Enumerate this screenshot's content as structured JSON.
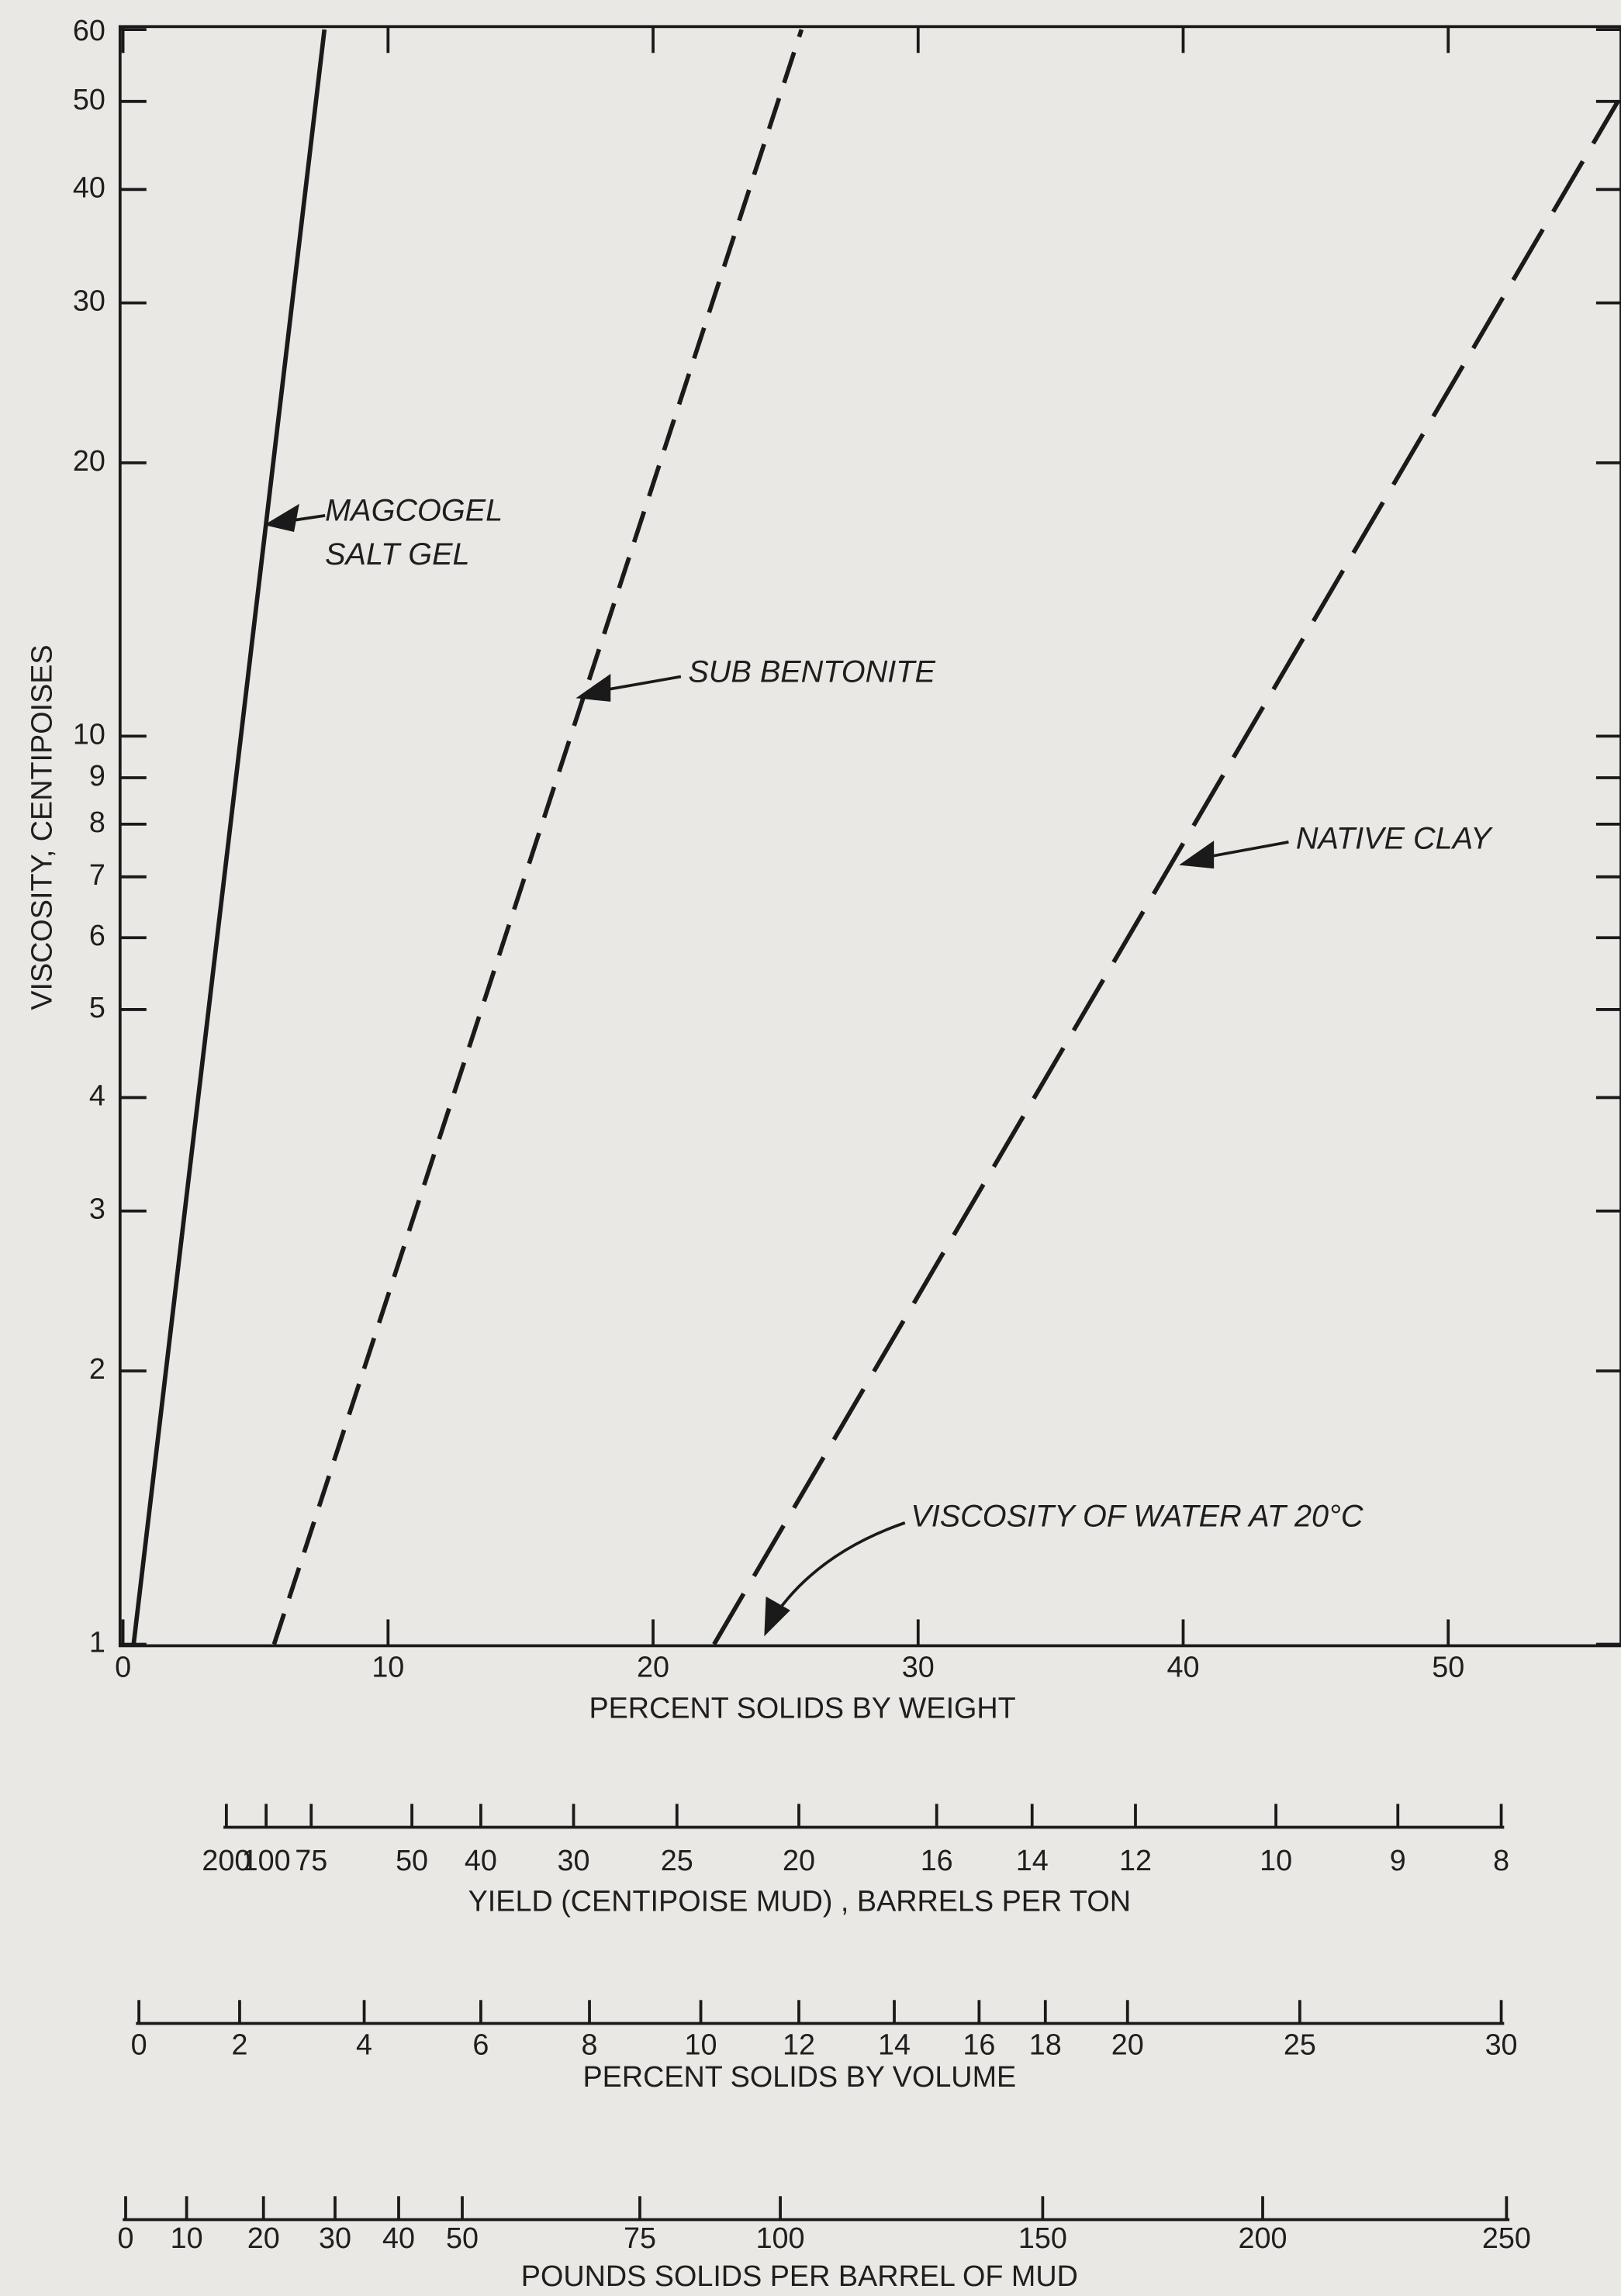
{
  "chart_data": {
    "type": "line",
    "xlabel": "PERCENT SOLIDS BY WEIGHT",
    "ylabel": "VISCOSITY, CENTIPOISES",
    "xlim": [
      0,
      56.3
    ],
    "ylim": [
      1,
      60
    ],
    "ylog": true,
    "xticks": [
      0,
      10,
      20,
      30,
      40,
      50
    ],
    "yticks": [
      1,
      2,
      3,
      4,
      5,
      6,
      7,
      8,
      9,
      10,
      20,
      30,
      40,
      50,
      60
    ],
    "color": "#1a1a1a",
    "series": [
      {
        "x": [
          0.4,
          7.6
        ],
        "values": [
          1,
          60
        ],
        "dash": "none"
      },
      {
        "x": [
          5.7,
          25.6
        ],
        "values": [
          1,
          60
        ],
        "dash": "22 11"
      },
      {
        "x": [
          22.3,
          56.4
        ],
        "values": [
          1,
          50
        ],
        "dash": "40 14"
      }
    ],
    "annotations": [
      "MAGCOGEL",
      "SALT GEL",
      "SUB BENTONITE",
      "NATIVE CLAY",
      "VISCOSITY OF WATER AT 20°C"
    ],
    "scales": [
      {
        "title": "YIELD (CENTIPOISE  MUD) , BARRELS PER TON",
        "x": [
          3.9,
          5.4,
          7.1,
          10.9,
          13.5,
          17.0,
          20.9,
          25.5,
          30.7,
          34.3,
          38.2,
          43.5,
          48.1,
          52.0
        ],
        "labels": [
          200,
          100,
          75,
          50,
          40,
          30,
          25,
          20,
          16,
          14,
          12,
          10,
          9,
          8
        ]
      },
      {
        "title": "PERCENT SOLIDS BY VOLUME",
        "x": [
          0.6,
          4.4,
          9.1,
          13.5,
          17.6,
          21.8,
          25.5,
          29.1,
          32.3,
          34.8,
          37.9,
          44.4,
          52.0
        ],
        "labels": [
          0,
          2,
          4,
          6,
          8,
          10,
          12,
          14,
          16,
          18,
          20,
          25,
          30
        ]
      },
      {
        "title": "POUNDS SOLIDS PER BARREL OF MUD",
        "x": [
          0.1,
          2.4,
          5.3,
          8.0,
          10.4,
          12.8,
          19.5,
          24.8,
          34.7,
          43.0,
          52.2
        ],
        "labels": [
          0,
          10,
          20,
          30,
          40,
          50,
          75,
          100,
          150,
          200,
          250
        ]
      }
    ]
  }
}
